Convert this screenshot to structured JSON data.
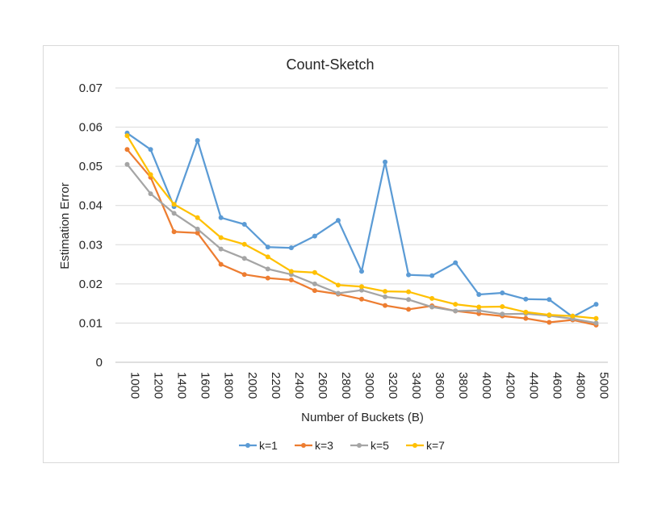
{
  "chart_data": {
    "type": "line",
    "title": "Count-Sketch",
    "xlabel": "Number of Buckets (B)",
    "ylabel": "Estimation Error",
    "ylim": [
      0,
      0.07
    ],
    "yticks": [
      "0",
      "0.01",
      "0.02",
      "0.03",
      "0.04",
      "0.05",
      "0.06",
      "0.07"
    ],
    "grid": true,
    "legend_position": "bottom",
    "categories": [
      "1000",
      "1200",
      "1400",
      "1600",
      "1800",
      "2000",
      "2200",
      "2400",
      "2600",
      "2800",
      "3000",
      "3200",
      "3400",
      "3600",
      "3800",
      "4000",
      "4200",
      "4400",
      "4600",
      "4800",
      "5000"
    ],
    "series": [
      {
        "name": "k=1",
        "color": "#5b9bd5",
        "values": [
          0.0585,
          0.0543,
          0.0397,
          0.0566,
          0.0369,
          0.0352,
          0.0294,
          0.0292,
          0.0322,
          0.0362,
          0.0232,
          0.0511,
          0.0223,
          0.0221,
          0.0254,
          0.0173,
          0.0177,
          0.0161,
          0.016,
          0.0116,
          0.0148
        ]
      },
      {
        "name": "k=3",
        "color": "#ed7d31",
        "values": [
          0.0543,
          0.0472,
          0.0333,
          0.033,
          0.025,
          0.0224,
          0.0215,
          0.021,
          0.0183,
          0.0174,
          0.0161,
          0.0145,
          0.0135,
          0.0144,
          0.0131,
          0.0124,
          0.0118,
          0.0112,
          0.0102,
          0.0108,
          0.0095
        ]
      },
      {
        "name": "k=5",
        "color": "#a5a5a5",
        "values": [
          0.0505,
          0.043,
          0.038,
          0.034,
          0.0289,
          0.0265,
          0.0238,
          0.0224,
          0.02,
          0.0176,
          0.0184,
          0.0167,
          0.016,
          0.0141,
          0.0131,
          0.0132,
          0.0123,
          0.0124,
          0.0119,
          0.0111,
          0.01
        ]
      },
      {
        "name": "k=7",
        "color": "#ffc000",
        "values": [
          0.0578,
          0.0479,
          0.0403,
          0.0369,
          0.0318,
          0.0301,
          0.0269,
          0.0232,
          0.0229,
          0.0197,
          0.0193,
          0.0181,
          0.018,
          0.0163,
          0.0148,
          0.0141,
          0.0142,
          0.0128,
          0.0121,
          0.0118,
          0.0112
        ]
      }
    ]
  }
}
